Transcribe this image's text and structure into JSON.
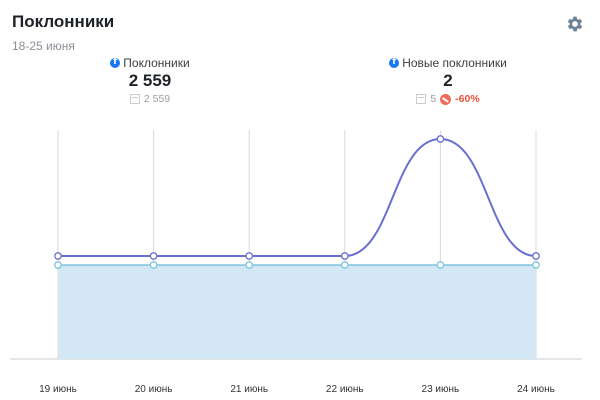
{
  "header": {
    "title": "Поклонники",
    "subtitle": "18-25 июня"
  },
  "stats": [
    {
      "label": "Поклонники",
      "value": "2 559",
      "prev": "2 559",
      "change": ""
    },
    {
      "label": "Новые поклонники",
      "value": "2",
      "prev": "5",
      "change": "-60%"
    }
  ],
  "colors": {
    "fans_line": "#7fc4dc",
    "fans_fill": "#d3e8f4",
    "new_fans_line": "#6a70cf",
    "grid": "#d6d9dd"
  },
  "icons": [
    "facebook-icon",
    "calendar-icon",
    "gear-icon",
    "down-trend-icon"
  ],
  "chart_data": {
    "type": "line",
    "categories": [
      "19 июнь",
      "20 июнь",
      "21 июнь",
      "22 июнь",
      "23 июнь",
      "24 июнь"
    ],
    "series": [
      {
        "name": "Поклонники",
        "values": [
          2559,
          2559,
          2559,
          2559,
          2559,
          2559
        ],
        "style": "area"
      },
      {
        "name": "Новые поклонники",
        "values": [
          0,
          0,
          0,
          0,
          2,
          0
        ],
        "style": "line"
      }
    ],
    "grid": true,
    "legend": "top"
  }
}
